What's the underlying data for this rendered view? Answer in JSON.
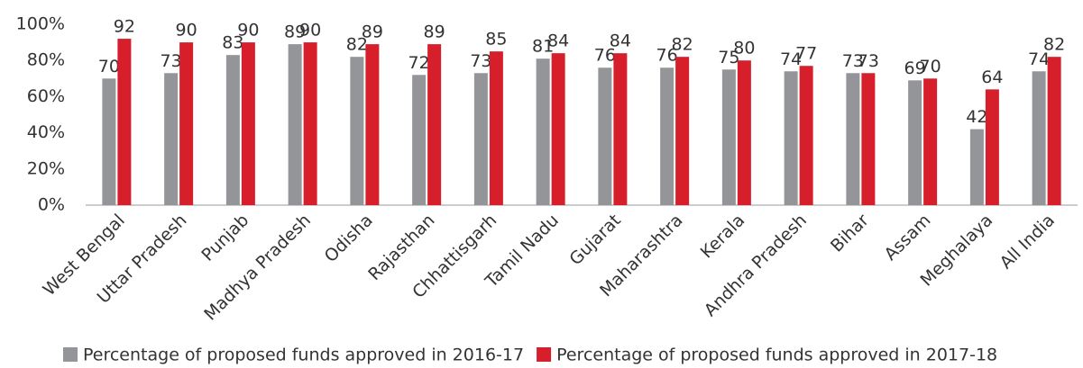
{
  "chart_data": {
    "type": "bar",
    "categories": [
      "West Bengal",
      "Uttar Pradesh",
      "Punjab",
      "Madhya Pradesh",
      "Odisha",
      "Rajasthan",
      "Chhattisgarh",
      "Tamil Nadu",
      "Gujarat",
      "Maharashtra",
      "Kerala",
      "Andhra Pradesh",
      "Bihar",
      "Assam",
      "Meghalaya",
      "All India"
    ],
    "series": [
      {
        "name": "Percentage of proposed funds approved in 2016-17",
        "color": "#939598",
        "values": [
          70,
          73,
          83,
          89,
          82,
          72,
          73,
          81,
          76,
          76,
          75,
          74,
          73,
          69,
          42,
          74
        ]
      },
      {
        "name": "Percentage of proposed funds approved in 2017-18",
        "color": "#d71f2b",
        "values": [
          92,
          90,
          90,
          90,
          89,
          89,
          85,
          84,
          84,
          82,
          80,
          77,
          73,
          70,
          64,
          82
        ]
      }
    ],
    "ylim": [
      0,
      100
    ],
    "yticks": [
      {
        "value": 0,
        "label": "0%"
      },
      {
        "value": 20,
        "label": "20%"
      },
      {
        "value": 40,
        "label": "40%"
      },
      {
        "value": 60,
        "label": "60%"
      },
      {
        "value": 80,
        "label": "80%"
      },
      {
        "value": 100,
        "label": "100%"
      }
    ],
    "grid": false,
    "legend": "bottom"
  }
}
